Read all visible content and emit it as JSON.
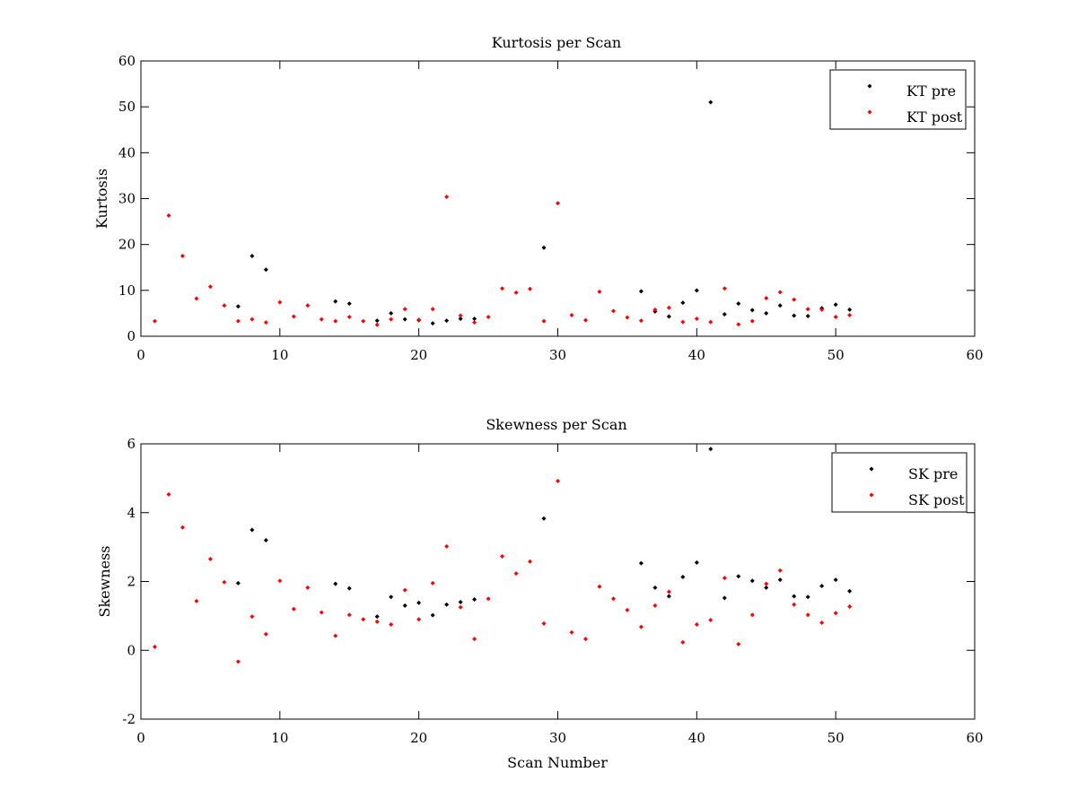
{
  "chart_data": [
    {
      "type": "scatter",
      "title": "Kurtosis per Scan",
      "xlabel": "",
      "ylabel": "Kurtosis",
      "xlim": [
        0,
        60
      ],
      "ylim": [
        0,
        60
      ],
      "xticks": [
        0,
        10,
        20,
        30,
        40,
        50,
        60
      ],
      "yticks": [
        0,
        10,
        20,
        30,
        40,
        50,
        60
      ],
      "grid": false,
      "legend_position": "top-right",
      "series": [
        {
          "name": "KT pre",
          "color": "#000000",
          "points": [
            [
              7,
              6.5
            ],
            [
              8,
              17.5
            ],
            [
              9,
              14.5
            ],
            [
              14,
              7.6
            ],
            [
              15,
              7.1
            ],
            [
              17,
              3.4
            ],
            [
              18,
              5.0
            ],
            [
              19,
              3.7
            ],
            [
              20,
              3.5
            ],
            [
              21,
              2.8
            ],
            [
              22,
              3.4
            ],
            [
              23,
              3.8
            ],
            [
              24,
              3.8
            ],
            [
              29,
              19.3
            ],
            [
              36,
              9.8
            ],
            [
              37,
              5.4
            ],
            [
              38,
              4.3
            ],
            [
              39,
              7.3
            ],
            [
              40,
              10.0
            ],
            [
              41,
              51.0
            ],
            [
              42,
              4.8
            ],
            [
              43,
              7.1
            ],
            [
              44,
              5.7
            ],
            [
              45,
              5.0
            ],
            [
              46,
              6.7
            ],
            [
              47,
              4.5
            ],
            [
              48,
              4.4
            ],
            [
              49,
              6.1
            ],
            [
              50,
              6.9
            ],
            [
              51,
              5.8
            ]
          ]
        },
        {
          "name": "KT post",
          "color": "#ff0000",
          "points": [
            [
              1,
              3.3
            ],
            [
              2,
              26.3
            ],
            [
              3,
              17.5
            ],
            [
              4,
              8.2
            ],
            [
              5,
              10.8
            ],
            [
              6,
              6.7
            ],
            [
              7,
              3.3
            ],
            [
              8,
              3.7
            ],
            [
              9,
              3.0
            ],
            [
              10,
              7.4
            ],
            [
              11,
              4.3
            ],
            [
              12,
              6.7
            ],
            [
              13,
              3.7
            ],
            [
              14,
              3.3
            ],
            [
              15,
              4.2
            ],
            [
              16,
              3.3
            ],
            [
              17,
              2.5
            ],
            [
              18,
              3.7
            ],
            [
              19,
              5.9
            ],
            [
              20,
              3.6
            ],
            [
              21,
              5.9
            ],
            [
              22,
              30.4
            ],
            [
              23,
              4.5
            ],
            [
              24,
              3.0
            ],
            [
              25,
              4.2
            ],
            [
              26,
              10.4
            ],
            [
              27,
              9.5
            ],
            [
              28,
              10.3
            ],
            [
              29,
              3.3
            ],
            [
              30,
              29.0
            ],
            [
              31,
              4.6
            ],
            [
              32,
              3.5
            ],
            [
              33,
              9.7
            ],
            [
              34,
              5.5
            ],
            [
              35,
              4.1
            ],
            [
              36,
              3.4
            ],
            [
              37,
              5.8
            ],
            [
              38,
              6.2
            ],
            [
              39,
              3.1
            ],
            [
              40,
              3.8
            ],
            [
              41,
              3.1
            ],
            [
              42,
              10.4
            ],
            [
              43,
              2.6
            ],
            [
              44,
              3.3
            ],
            [
              45,
              8.3
            ],
            [
              46,
              9.6
            ],
            [
              47,
              8.0
            ],
            [
              48,
              5.9
            ],
            [
              49,
              5.8
            ],
            [
              50,
              4.2
            ],
            [
              51,
              4.6
            ]
          ]
        }
      ]
    },
    {
      "type": "scatter",
      "title": "Skewness per Scan",
      "xlabel": "Scan Number",
      "ylabel": "Skewness",
      "xlim": [
        0,
        60
      ],
      "ylim": [
        -2,
        6
      ],
      "xticks": [
        0,
        10,
        20,
        30,
        40,
        50,
        60
      ],
      "yticks": [
        -2,
        0,
        2,
        4,
        6
      ],
      "grid": false,
      "legend_position": "top-right",
      "series": [
        {
          "name": "SK pre",
          "color": "#000000",
          "points": [
            [
              7,
              1.95
            ],
            [
              8,
              3.5
            ],
            [
              9,
              3.2
            ],
            [
              14,
              1.93
            ],
            [
              15,
              1.8
            ],
            [
              17,
              0.98
            ],
            [
              18,
              1.55
            ],
            [
              19,
              1.3
            ],
            [
              20,
              1.38
            ],
            [
              21,
              1.02
            ],
            [
              22,
              1.33
            ],
            [
              23,
              1.4
            ],
            [
              24,
              1.48
            ],
            [
              29,
              3.83
            ],
            [
              36,
              2.53
            ],
            [
              37,
              1.82
            ],
            [
              38,
              1.57
            ],
            [
              39,
              2.13
            ],
            [
              40,
              2.55
            ],
            [
              41,
              5.85
            ],
            [
              42,
              1.52
            ],
            [
              43,
              2.15
            ],
            [
              44,
              2.02
            ],
            [
              45,
              1.82
            ],
            [
              46,
              2.05
            ],
            [
              47,
              1.57
            ],
            [
              48,
              1.55
            ],
            [
              49,
              1.87
            ],
            [
              50,
              2.05
            ],
            [
              51,
              1.72
            ]
          ]
        },
        {
          "name": "SK post",
          "color": "#ff0000",
          "points": [
            [
              1,
              0.1
            ],
            [
              2,
              4.53
            ],
            [
              3,
              3.57
            ],
            [
              4,
              1.43
            ],
            [
              5,
              2.65
            ],
            [
              6,
              1.98
            ],
            [
              7,
              -0.33
            ],
            [
              8,
              0.98
            ],
            [
              9,
              0.47
            ],
            [
              10,
              2.02
            ],
            [
              11,
              1.2
            ],
            [
              12,
              1.82
            ],
            [
              13,
              1.1
            ],
            [
              14,
              0.42
            ],
            [
              15,
              1.03
            ],
            [
              16,
              0.9
            ],
            [
              17,
              0.83
            ],
            [
              18,
              0.75
            ],
            [
              19,
              1.75
            ],
            [
              20,
              0.9
            ],
            [
              21,
              1.95
            ],
            [
              22,
              3.02
            ],
            [
              23,
              1.25
            ],
            [
              24,
              0.33
            ],
            [
              25,
              1.5
            ],
            [
              26,
              2.73
            ],
            [
              27,
              2.23
            ],
            [
              28,
              2.58
            ],
            [
              29,
              0.78
            ],
            [
              30,
              4.92
            ],
            [
              31,
              0.52
            ],
            [
              32,
              0.33
            ],
            [
              33,
              1.85
            ],
            [
              34,
              1.5
            ],
            [
              35,
              1.17
            ],
            [
              36,
              0.68
            ],
            [
              37,
              1.3
            ],
            [
              38,
              1.7
            ],
            [
              39,
              0.23
            ],
            [
              40,
              0.75
            ],
            [
              41,
              0.88
            ],
            [
              42,
              2.1
            ],
            [
              43,
              0.18
            ],
            [
              44,
              1.03
            ],
            [
              45,
              1.93
            ],
            [
              46,
              2.32
            ],
            [
              47,
              1.33
            ],
            [
              48,
              1.03
            ],
            [
              49,
              0.8
            ],
            [
              50,
              1.08
            ],
            [
              51,
              1.27
            ]
          ]
        }
      ]
    }
  ]
}
